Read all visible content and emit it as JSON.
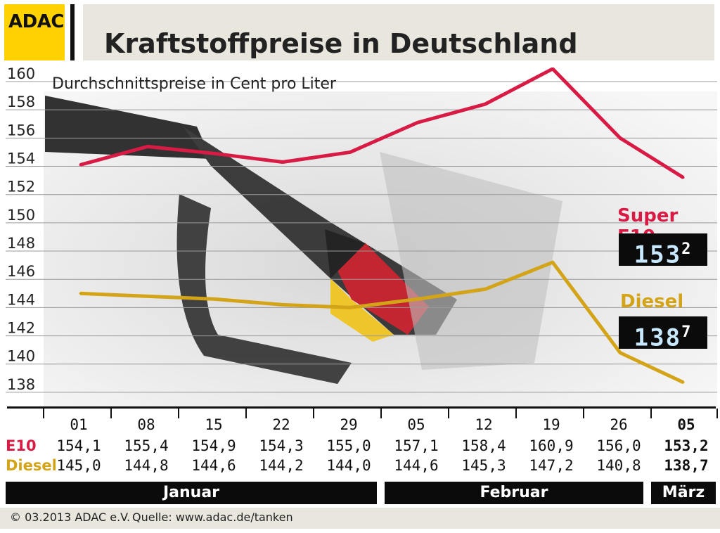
{
  "header": {
    "logo": "ADAC",
    "title": "Kraftstoffpreise in Deutschland"
  },
  "colors": {
    "e10": "#d81b45",
    "diesel": "#d4a418",
    "logo": "#ffd200",
    "band": "#e9e6dd"
  },
  "chart_data": {
    "type": "line",
    "subtitle": "Durchschnittspreise in Cent pro Liter",
    "x": [
      "01",
      "08",
      "15",
      "22",
      "29",
      "05",
      "12",
      "19",
      "26",
      "05"
    ],
    "ylim": [
      137,
      160
    ],
    "yticks": [
      160,
      158,
      156,
      154,
      152,
      150,
      148,
      146,
      144,
      142,
      140,
      138
    ],
    "grid": true,
    "series": [
      {
        "name": "Super E10",
        "row_label": "E10",
        "values": [
          154.1,
          155.4,
          154.9,
          154.3,
          155.0,
          157.1,
          158.4,
          160.9,
          156.0,
          153.2
        ]
      },
      {
        "name": "Diesel",
        "row_label": "Diesel",
        "values": [
          145.0,
          144.8,
          144.6,
          144.2,
          144.0,
          144.6,
          145.3,
          147.2,
          140.8,
          138.7
        ]
      }
    ],
    "value_labels": {
      "e10": [
        "154,1",
        "155,4",
        "154,9",
        "154,3",
        "155,0",
        "157,1",
        "158,4",
        "160,9",
        "156,0",
        "153,2"
      ],
      "diesel": [
        "145,0",
        "144,8",
        "144,6",
        "144,2",
        "144,0",
        "144,6",
        "145,3",
        "147,2",
        "140,8",
        "138,7"
      ]
    },
    "months": [
      {
        "label": "Januar",
        "span": [
          0,
          4
        ]
      },
      {
        "label": "Februar",
        "span": [
          5,
          8
        ]
      },
      {
        "label": "März",
        "span": [
          9,
          9
        ]
      }
    ],
    "displays": {
      "e10_main": "153",
      "e10_frac": "2",
      "diesel_main": "138",
      "diesel_frac": "7"
    }
  },
  "footer": {
    "copyright": "© 03.2013  ADAC e.V.",
    "source": "Quelle: www.adac.de/tanken"
  }
}
